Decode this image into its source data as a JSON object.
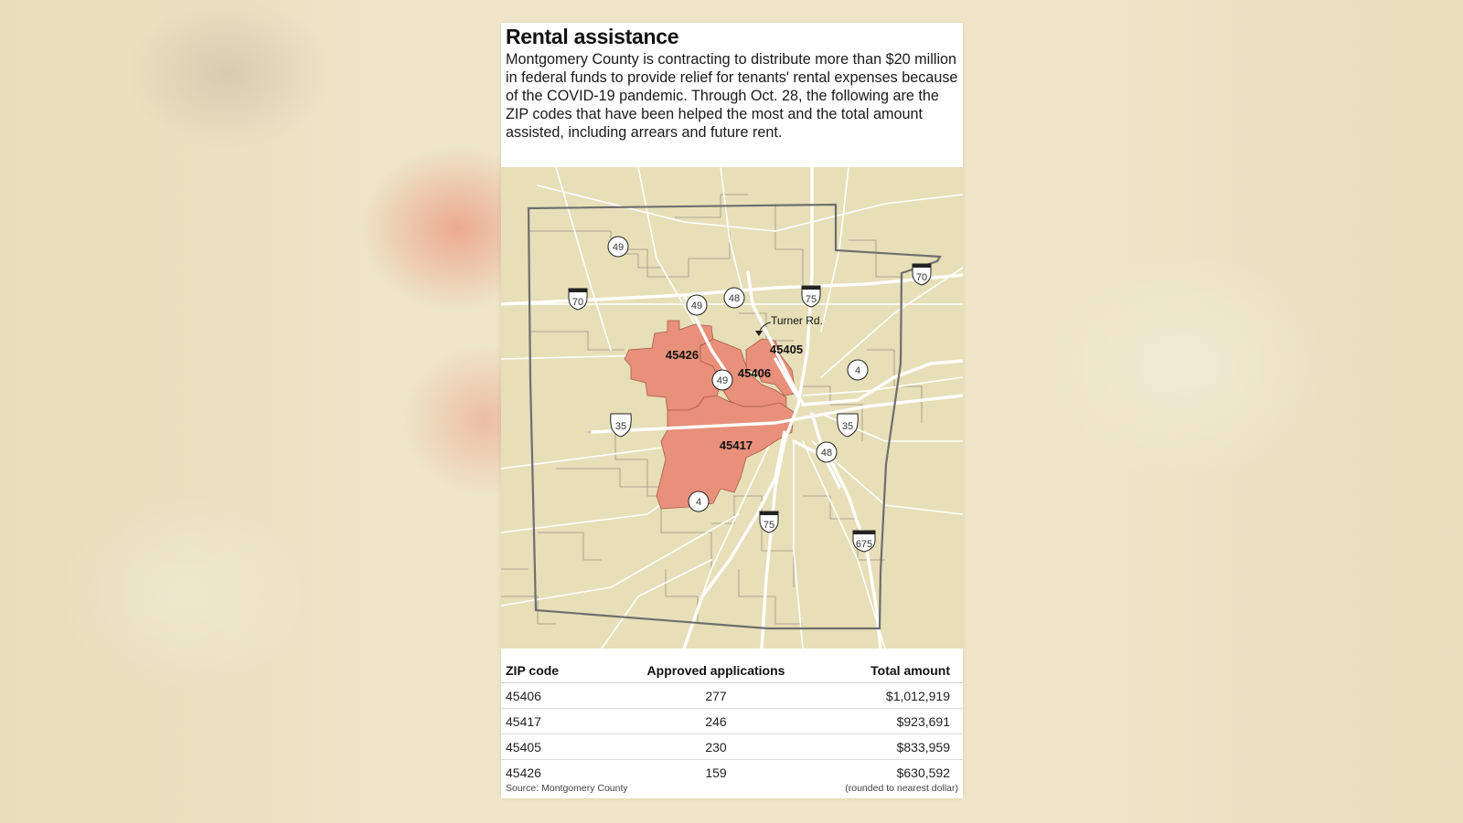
{
  "header": {
    "title": "Rental assistance",
    "description": "Montgomery County is contracting to distribute more than $20 million in federal funds to provide relief for tenants' rental expenses because of the COVID-19 pandemic. Through Oct. 28, the following are the ZIP codes that have been helped the most and the total amount assisted, including arrears and future rent."
  },
  "map": {
    "zip_labels": [
      "45426",
      "45405",
      "45406",
      "45417"
    ],
    "highlight_color": "#e8907a",
    "base_color": "#e7dfb8",
    "road_label": "Turner Rd.",
    "interstate_shields": [
      "70",
      "70",
      "75",
      "75",
      "675"
    ],
    "us_shields": [
      "35",
      "35"
    ],
    "state_shields": [
      "49",
      "49",
      "49",
      "48",
      "48",
      "4",
      "4"
    ]
  },
  "table": {
    "headers": [
      "ZIP code",
      "Approved applications",
      "Total amount"
    ],
    "rows": [
      {
        "zip": "45406",
        "applications": "277",
        "amount": "$1,012,919"
      },
      {
        "zip": "45417",
        "applications": "246",
        "amount": "$923,691"
      },
      {
        "zip": "45405",
        "applications": "230",
        "amount": "$833,959"
      },
      {
        "zip": "45426",
        "applications": "159",
        "amount": "$630,592"
      }
    ]
  },
  "footer": {
    "source": "Source: Montgomery County",
    "note": "(rounded to nearest dollar)"
  }
}
